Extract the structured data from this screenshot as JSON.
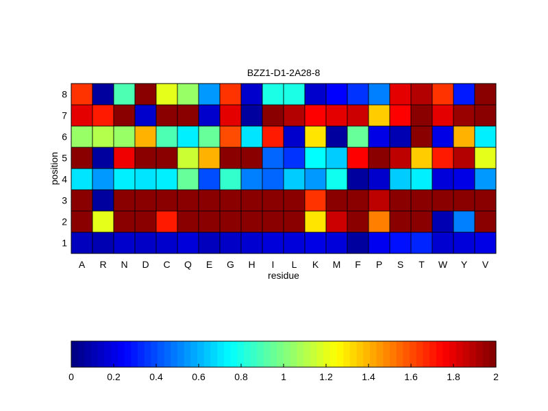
{
  "chart_data": [
    {
      "type": "heatmap",
      "title": "BZZ1-D1-2A28-8",
      "xlabel": "residue",
      "ylabel": "position",
      "x_categories": [
        "A",
        "R",
        "N",
        "D",
        "C",
        "Q",
        "E",
        "G",
        "H",
        "I",
        "L",
        "K",
        "M",
        "F",
        "P",
        "S",
        "T",
        "W",
        "Y",
        "V"
      ],
      "y_categories": [
        "1",
        "2",
        "3",
        "4",
        "5",
        "6",
        "7",
        "8"
      ],
      "colormap": "jet",
      "clim": [
        0,
        2
      ],
      "values": [
        [
          0.12,
          0.1,
          0.15,
          0.14,
          0.15,
          0.18,
          0.12,
          0.14,
          0.16,
          0.18,
          0.18,
          0.2,
          0.18,
          0.06,
          0.22,
          0.28,
          0.32,
          0.16,
          0.18,
          0.2
        ],
        [
          1.98,
          1.2,
          1.98,
          1.98,
          1.7,
          1.98,
          1.98,
          1.98,
          1.98,
          1.98,
          1.98,
          1.3,
          1.85,
          1.98,
          1.5,
          1.98,
          1.98,
          0.1,
          0.5,
          1.98
        ],
        [
          1.98,
          0.06,
          1.98,
          1.98,
          1.98,
          1.98,
          1.98,
          1.98,
          1.98,
          1.98,
          1.98,
          1.65,
          1.98,
          1.98,
          1.88,
          1.98,
          1.98,
          1.98,
          1.98,
          1.98
        ],
        [
          0.7,
          0.55,
          0.72,
          0.7,
          0.72,
          0.95,
          0.4,
          0.85,
          0.5,
          0.45,
          0.65,
          0.55,
          0.78,
          0.06,
          0.15,
          0.65,
          0.72,
          0.18,
          0.2,
          0.55
        ],
        [
          1.98,
          0.06,
          1.78,
          1.98,
          1.98,
          1.15,
          1.4,
          1.98,
          1.98,
          0.45,
          0.35,
          0.75,
          0.65,
          1.75,
          1.98,
          1.88,
          1.35,
          1.7,
          1.9,
          1.2
        ],
        [
          1.05,
          1.1,
          1.05,
          1.4,
          0.9,
          0.72,
          0.95,
          1.6,
          0.7,
          1.7,
          0.15,
          1.3,
          0.06,
          0.95,
          0.2,
          0.1,
          1.98,
          0.2,
          1.4,
          0.72
        ],
        [
          1.8,
          1.7,
          1.98,
          0.15,
          1.98,
          1.98,
          0.15,
          1.8,
          0.06,
          1.98,
          1.9,
          1.75,
          1.8,
          1.85,
          1.35,
          1.75,
          1.98,
          1.8,
          1.95,
          1.98
        ],
        [
          1.65,
          0.06,
          0.9,
          1.98,
          1.2,
          1.05,
          0.55,
          1.65,
          0.15,
          0.8,
          0.8,
          0.15,
          0.25,
          0.35,
          0.5,
          1.8,
          1.9,
          1.65,
          0.3,
          1.98
        ]
      ]
    },
    {
      "type": "colorbar",
      "clim": [
        0,
        2
      ],
      "tick_labels": [
        "0",
        "0.2",
        "0.4",
        "0.6",
        "0.8",
        "1",
        "1.2",
        "1.4",
        "1.6",
        "1.8",
        "2"
      ]
    }
  ]
}
